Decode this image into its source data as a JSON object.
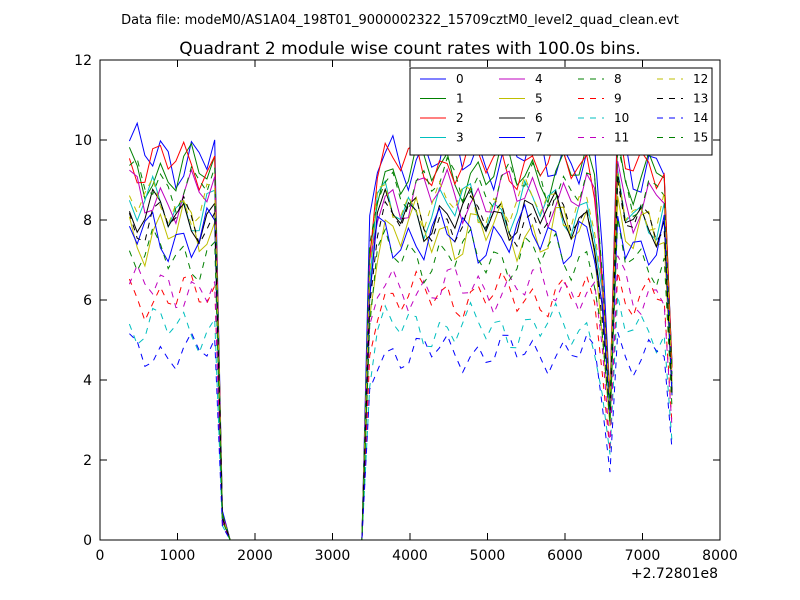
{
  "figure": {
    "suptitle": "Data file: modeM0/AS1A04_198T01_9000002322_15709cztM0_level2_quad_clean.evt"
  },
  "chart_data": {
    "type": "line",
    "title": "Quadrant 2 module wise count rates with 100.0s bins.",
    "xlabel": "",
    "ylabel": "",
    "x_offset_label": "+2.72801e8",
    "xlim": [
      0,
      8000
    ],
    "ylim": [
      0,
      12
    ],
    "x_ticks": [
      0,
      1000,
      2000,
      3000,
      4000,
      5000,
      6000,
      7000,
      8000
    ],
    "y_ticks": [
      0,
      2,
      4,
      6,
      8,
      10,
      12
    ],
    "grid": false,
    "legend_position": "top-right",
    "legend_columns": 4,
    "x": [
      380,
      480,
      580,
      680,
      780,
      880,
      980,
      1080,
      1180,
      1280,
      1380,
      1480,
      1580,
      1680,
      1780,
      1880,
      1980,
      2080,
      2180,
      2280,
      2380,
      2480,
      2580,
      2680,
      2780,
      2880,
      2980,
      3080,
      3180,
      3280,
      3380,
      3480,
      3580,
      3680,
      3780,
      3880,
      3980,
      4080,
      4180,
      4280,
      4380,
      4480,
      4580,
      4680,
      4780,
      4880,
      4980,
      5080,
      5180,
      5280,
      5380,
      5480,
      5580,
      5680,
      5780,
      5880,
      5980,
      6080,
      6180,
      6280,
      6380,
      6480,
      6580,
      6680,
      6780,
      6880,
      6980,
      7080,
      7180,
      7280,
      7380
    ],
    "series": [
      {
        "name": "0",
        "color": "#0000ff",
        "dash": "solid",
        "base": 9.6,
        "amp": 0.55,
        "phase": 0.3
      },
      {
        "name": "1",
        "color": "#008000",
        "dash": "solid",
        "base": 9.2,
        "amp": 0.5,
        "phase": 1.1
      },
      {
        "name": "2",
        "color": "#ff0000",
        "dash": "solid",
        "base": 9.4,
        "amp": 0.45,
        "phase": 2.0
      },
      {
        "name": "3",
        "color": "#00bfbf",
        "dash": "solid",
        "base": 8.3,
        "amp": 0.5,
        "phase": 2.7
      },
      {
        "name": "4",
        "color": "#bf00bf",
        "dash": "solid",
        "base": 8.6,
        "amp": 0.5,
        "phase": 0.8
      },
      {
        "name": "5",
        "color": "#bfbf00",
        "dash": "solid",
        "base": 7.7,
        "amp": 0.55,
        "phase": 1.6
      },
      {
        "name": "6",
        "color": "#000000",
        "dash": "solid",
        "base": 8.1,
        "amp": 0.45,
        "phase": 2.4
      },
      {
        "name": "7",
        "color": "#0000ff",
        "dash": "solid",
        "base": 7.6,
        "amp": 0.5,
        "phase": 3.1
      },
      {
        "name": "8",
        "color": "#008000",
        "dash": "dashed",
        "base": 8.9,
        "amp": 0.45,
        "phase": 0.5
      },
      {
        "name": "9",
        "color": "#ff0000",
        "dash": "dashed",
        "base": 6.1,
        "amp": 0.4,
        "phase": 1.3
      },
      {
        "name": "10",
        "color": "#00bfbf",
        "dash": "dashed",
        "base": 5.3,
        "amp": 0.4,
        "phase": 2.2
      },
      {
        "name": "11",
        "color": "#bf00bf",
        "dash": "dashed",
        "base": 6.3,
        "amp": 0.4,
        "phase": 0.1
      },
      {
        "name": "12",
        "color": "#bfbf00",
        "dash": "dashed",
        "base": 8.4,
        "amp": 0.45,
        "phase": 2.9
      },
      {
        "name": "13",
        "color": "#000000",
        "dash": "dashed",
        "base": 8.0,
        "amp": 0.45,
        "phase": 1.9
      },
      {
        "name": "14",
        "color": "#0000ff",
        "dash": "dashed",
        "base": 4.7,
        "amp": 0.35,
        "phase": 0.9
      },
      {
        "name": "15",
        "color": "#008000",
        "dash": "dashed",
        "base": 7.1,
        "amp": 0.45,
        "phase": 2.5
      }
    ],
    "profile": [
      1,
      1,
      1,
      1,
      1,
      1,
      1,
      1,
      1,
      1,
      1,
      1,
      0.07,
      0,
      0,
      0,
      0,
      0,
      0,
      0,
      0,
      0,
      0,
      0,
      0,
      0,
      0,
      0,
      0,
      0,
      0,
      0.8,
      0.98,
      1,
      1,
      1,
      1,
      1,
      1,
      1,
      1,
      1,
      1,
      1,
      1,
      1,
      1,
      1,
      1,
      1,
      1,
      1,
      1,
      1,
      1,
      1,
      1,
      1,
      1,
      1,
      0.95,
      0.75,
      0.38,
      1.07,
      1,
      0.98,
      0.97,
      0.98,
      0.99,
      1,
      0.45
    ]
  }
}
